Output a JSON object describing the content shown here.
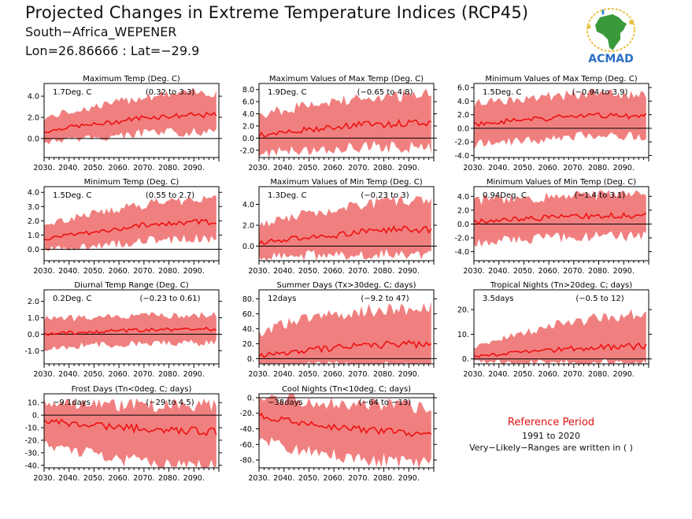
{
  "header": {
    "title": "Projected Changes in Extreme Temperature Indices (RCP45)",
    "location": "South−Africa_WEPENER",
    "coordinates": "Lon=26.86666 : Lat=−29.9"
  },
  "logo": {
    "text": "ACMAD",
    "icon": "africa-map-icon"
  },
  "legend": {
    "title": "Reference Period",
    "years": "1991 to 2020",
    "note": "Very−Likely−Ranges are written in ( )"
  },
  "colors": {
    "band": "#f08080",
    "line": "#ee1111",
    "zero": "#000000"
  },
  "chart_data": [
    {
      "type": "area",
      "title": "Maximum Temp (Deg. C)",
      "annotation": "1.7Deg. C",
      "range": "(0.32 to 3.3)",
      "xlim": [
        2030,
        2100
      ],
      "ylim": [
        -1.8,
        5.2
      ],
      "yticks": [
        0,
        2,
        4
      ],
      "ytick_labels": [
        "0.0",
        "2.0",
        "4.0"
      ],
      "xticks": [
        2030,
        2040,
        2050,
        2060,
        2070,
        2080,
        2090
      ],
      "xtick_labels": [
        "2030.",
        "2040.",
        "2050.",
        "2060.",
        "2070.",
        "2080.",
        "2090."
      ],
      "x_start": 2030,
      "x_end": 2099,
      "median_knots": [
        0.6,
        1.1,
        1.3,
        1.6,
        2.0,
        2.1,
        2.2,
        2.2
      ],
      "lower_knots": [
        -0.1,
        0.3,
        0.4,
        0.6,
        0.9,
        1.0,
        1.1,
        1.1
      ],
      "upper_knots": [
        1.6,
        2.2,
        2.6,
        3.0,
        3.5,
        3.7,
        3.8,
        3.9
      ]
    },
    {
      "type": "area",
      "title": "Maximum Values of Max Temp (Deg. C)",
      "annotation": "1.9Deg. C",
      "range": "(−0.65 to 4.8)",
      "xlim": [
        2030,
        2100
      ],
      "ylim": [
        -3.2,
        9.0
      ],
      "yticks": [
        -2,
        0,
        2,
        4,
        6,
        8
      ],
      "ytick_labels": [
        "-2.0",
        "0.0",
        "2.0",
        "4.0",
        "6.0",
        "8.0"
      ],
      "xticks": [
        2030,
        2040,
        2050,
        2060,
        2070,
        2080,
        2090
      ],
      "xtick_labels": [
        "2030.",
        "2040.",
        "2050.",
        "2060.",
        "2070.",
        "2080.",
        "2090."
      ],
      "x_start": 2030,
      "x_end": 2099,
      "median_knots": [
        0.5,
        1.0,
        1.4,
        1.8,
        2.2,
        2.3,
        2.4,
        2.5
      ],
      "lower_knots": [
        -1.8,
        -1.2,
        -0.9,
        -0.7,
        -0.4,
        -0.4,
        -0.3,
        -0.3
      ],
      "upper_knots": [
        3.0,
        3.8,
        4.5,
        5.0,
        5.6,
        5.8,
        6.0,
        6.1
      ]
    },
    {
      "type": "area",
      "title": "Minimum Values of Max Temp (Deg. C)",
      "annotation": "1.5Deg. C",
      "range": "(−0.94 to 3.9)",
      "xlim": [
        2030,
        2100
      ],
      "ylim": [
        -4.3,
        6.6
      ],
      "yticks": [
        -4,
        -2,
        0,
        2,
        4,
        6
      ],
      "ytick_labels": [
        "-4.0",
        "-2.0",
        "0.0",
        "2.0",
        "4.0",
        "6.0"
      ],
      "xticks": [
        2030,
        2040,
        2050,
        2060,
        2070,
        2080,
        2090
      ],
      "xtick_labels": [
        "2030.",
        "2040.",
        "2050.",
        "2060.",
        "2070.",
        "2080.",
        "2090."
      ],
      "x_start": 2030,
      "x_end": 2099,
      "median_knots": [
        0.6,
        1.0,
        1.2,
        1.5,
        1.8,
        1.9,
        1.8,
        1.8
      ],
      "lower_knots": [
        -1.6,
        -1.1,
        -0.9,
        -0.7,
        -0.4,
        -0.3,
        -0.3,
        -0.3
      ],
      "upper_knots": [
        2.8,
        3.3,
        3.6,
        3.9,
        4.2,
        4.3,
        4.3,
        4.2
      ]
    },
    {
      "type": "area",
      "title": "Minimum Temp (Deg. C)",
      "annotation": "1.5Deg. C",
      "range": "(0.55 to 2.7)",
      "xlim": [
        2030,
        2100
      ],
      "ylim": [
        -0.8,
        4.4
      ],
      "yticks": [
        0,
        1,
        2,
        3,
        4
      ],
      "ytick_labels": [
        "0.0",
        "1.0",
        "2.0",
        "3.0",
        "4.0"
      ],
      "xticks": [
        2030,
        2040,
        2050,
        2060,
        2070,
        2080,
        2090
      ],
      "xtick_labels": [
        "2030.",
        "2040.",
        "2050.",
        "2060.",
        "2070.",
        "2080.",
        "2090."
      ],
      "x_start": 2030,
      "x_end": 2099,
      "median_knots": [
        0.7,
        1.0,
        1.2,
        1.4,
        1.7,
        1.8,
        1.9,
        1.9
      ],
      "lower_knots": [
        0.2,
        0.4,
        0.5,
        0.7,
        0.9,
        1.0,
        1.1,
        1.1
      ],
      "upper_knots": [
        1.4,
        1.9,
        2.2,
        2.5,
        2.8,
        3.0,
        3.1,
        3.1
      ]
    },
    {
      "type": "area",
      "title": "Maximum Values of Min Temp (Deg. C)",
      "annotation": "1.3Deg. C",
      "range": "(−0.23 to 3)",
      "xlim": [
        2030,
        2100
      ],
      "ylim": [
        -1.4,
        5.7
      ],
      "yticks": [
        0,
        2,
        4
      ],
      "ytick_labels": [
        "0.0",
        "2.0",
        "4.0"
      ],
      "xticks": [
        2030,
        2040,
        2050,
        2060,
        2070,
        2080,
        2090
      ],
      "xtick_labels": [
        "2030.",
        "2040.",
        "2050.",
        "2060.",
        "2070.",
        "2080.",
        "2090."
      ],
      "x_start": 2030,
      "x_end": 2099,
      "median_knots": [
        0.3,
        0.6,
        0.8,
        1.0,
        1.3,
        1.5,
        1.6,
        1.6
      ],
      "lower_knots": [
        -0.7,
        -0.5,
        -0.4,
        -0.3,
        -0.1,
        0.0,
        0.0,
        0.0
      ],
      "upper_knots": [
        1.6,
        2.2,
        2.6,
        3.0,
        3.4,
        3.6,
        3.7,
        3.7
      ]
    },
    {
      "type": "area",
      "title": "Minimum Values of Min Temp (Deg. C)",
      "annotation": "0.94Deg. C",
      "range": "(−1.4 to 3.1)",
      "xlim": [
        2030,
        2100
      ],
      "ylim": [
        -5.3,
        5.4
      ],
      "yticks": [
        -4,
        -2,
        0,
        2,
        4
      ],
      "ytick_labels": [
        "-4.0",
        "-2.0",
        "0.0",
        "2.0",
        "4.0"
      ],
      "xticks": [
        2030,
        2040,
        2050,
        2060,
        2070,
        2080,
        2090
      ],
      "xtick_labels": [
        "2030.",
        "2040.",
        "2050.",
        "2060.",
        "2070.",
        "2080.",
        "2090."
      ],
      "x_start": 2030,
      "x_end": 2099,
      "median_knots": [
        0.3,
        0.6,
        0.8,
        0.9,
        1.1,
        1.2,
        1.2,
        1.2
      ],
      "lower_knots": [
        -2.0,
        -1.6,
        -1.4,
        -1.3,
        -1.1,
        -1.0,
        -1.0,
        -1.0
      ],
      "upper_knots": [
        2.5,
        2.8,
        3.0,
        3.1,
        3.3,
        3.4,
        3.4,
        3.4
      ]
    },
    {
      "type": "area",
      "title": "Diurnal Temp Range (Deg. C)",
      "annotation": "0.2Deg. C",
      "range": "(−0.23 to 0.61)",
      "xlim": [
        2030,
        2100
      ],
      "ylim": [
        -1.8,
        2.7
      ],
      "yticks": [
        -1,
        0,
        1,
        2
      ],
      "ytick_labels": [
        "-1.0",
        "0.0",
        "1.0",
        "2.0"
      ],
      "xticks": [
        2030,
        2040,
        2050,
        2060,
        2070,
        2080,
        2090
      ],
      "xtick_labels": [
        "2030.",
        "2040.",
        "2050.",
        "2060.",
        "2070.",
        "2080.",
        "2090."
      ],
      "x_start": 2030,
      "x_end": 2099,
      "median_knots": [
        0.05,
        0.1,
        0.15,
        0.2,
        0.25,
        0.3,
        0.3,
        0.3
      ],
      "lower_knots": [
        -0.6,
        -0.5,
        -0.45,
        -0.4,
        -0.35,
        -0.3,
        -0.3,
        -0.3
      ],
      "upper_knots": [
        0.7,
        0.75,
        0.8,
        0.85,
        0.9,
        0.95,
        0.95,
        0.95
      ]
    },
    {
      "type": "area",
      "title": "Summer Days (Tx>30deg. C; days)",
      "annotation": "12days",
      "range": "(−9.2 to 47)",
      "xlim": [
        2030,
        2100
      ],
      "ylim": [
        -7,
        92
      ],
      "yticks": [
        0,
        20,
        40,
        60,
        80
      ],
      "ytick_labels": [
        "0.",
        "20.",
        "40.",
        "60.",
        "80."
      ],
      "xticks": [
        2030,
        2040,
        2050,
        2060,
        2070,
        2080,
        2090
      ],
      "xtick_labels": [
        "2030.",
        "2040.",
        "2050.",
        "2060.",
        "2070.",
        "2080.",
        "2090."
      ],
      "x_start": 2030,
      "x_end": 2099,
      "median_knots": [
        4,
        8,
        11,
        14,
        17,
        18,
        19,
        20
      ],
      "lower_knots": [
        -6,
        -5,
        -4,
        -3,
        -2,
        -2,
        -2,
        -2
      ],
      "upper_knots": [
        28,
        38,
        44,
        48,
        54,
        56,
        57,
        57
      ]
    },
    {
      "type": "area",
      "title": "Tropical Nights (Tn>20deg. C; days)",
      "annotation": "3.5days",
      "range": "(−0.5 to 12)",
      "xlim": [
        2030,
        2100
      ],
      "ylim": [
        -2,
        28
      ],
      "yticks": [
        0,
        10,
        20
      ],
      "ytick_labels": [
        "0.",
        "10.",
        "20."
      ],
      "xticks": [
        2030,
        2040,
        2050,
        2060,
        2070,
        2080,
        2090
      ],
      "xtick_labels": [
        "2030.",
        "2040.",
        "2050.",
        "2060.",
        "2070.",
        "2080.",
        "2090."
      ],
      "x_start": 2030,
      "x_end": 2099,
      "median_knots": [
        1,
        1.8,
        2.8,
        3.5,
        4.2,
        4.6,
        5,
        5.2
      ],
      "lower_knots": [
        -0.3,
        -0.2,
        -0.1,
        0,
        0.2,
        0.3,
        0.4,
        0.4
      ],
      "upper_knots": [
        4,
        6.5,
        9,
        11,
        13,
        14,
        15,
        15.5
      ]
    },
    {
      "type": "area",
      "title": "Frost Days (Tn<0deg. C; days)",
      "annotation": "−9.1days",
      "range": "(−29 to 4.5)",
      "xlim": [
        2030,
        2100
      ],
      "ylim": [
        -42,
        17
      ],
      "yticks": [
        -40,
        -30,
        -20,
        -10,
        0,
        10
      ],
      "ytick_labels": [
        "-40.",
        "-30.",
        "-20.",
        "-10.",
        "0.",
        "10."
      ],
      "xticks": [
        2030,
        2040,
        2050,
        2060,
        2070,
        2080,
        2090
      ],
      "xtick_labels": [
        "2030.",
        "2040.",
        "2050.",
        "2060.",
        "2070.",
        "2080.",
        "2090."
      ],
      "x_start": 2030,
      "x_end": 2099,
      "median_knots": [
        -4,
        -6.5,
        -8,
        -9.5,
        -11,
        -12,
        -12.5,
        -13
      ],
      "lower_knots": [
        -18,
        -23,
        -26,
        -29,
        -32,
        -33,
        -34,
        -35
      ],
      "upper_knots": [
        6,
        4,
        3,
        2.5,
        2,
        1.5,
        1.5,
        1
      ]
    },
    {
      "type": "area",
      "title": "Cool Nights (Tn<10deg. C; days)",
      "annotation": "−38days",
      "range": "(−64 to −13)",
      "xlim": [
        2030,
        2100
      ],
      "ylim": [
        -90,
        5
      ],
      "yticks": [
        -80,
        -60,
        -40,
        -20,
        0
      ],
      "ytick_labels": [
        "-80.",
        "-60.",
        "-40.",
        "-20.",
        "0."
      ],
      "xticks": [
        2030,
        2040,
        2050,
        2060,
        2070,
        2080,
        2090
      ],
      "xtick_labels": [
        "2030.",
        "2040.",
        "2050.",
        "2060.",
        "2070.",
        "2080.",
        "2090."
      ],
      "x_start": 2030,
      "x_end": 2099,
      "median_knots": [
        -22,
        -29,
        -34,
        -38,
        -41,
        -43,
        -45,
        -46
      ],
      "lower_knots": [
        -46,
        -55,
        -61,
        -65,
        -69,
        -71,
        -73,
        -74
      ],
      "upper_knots": [
        -5,
        -10,
        -13,
        -16,
        -18,
        -19,
        -20,
        -21
      ]
    }
  ]
}
